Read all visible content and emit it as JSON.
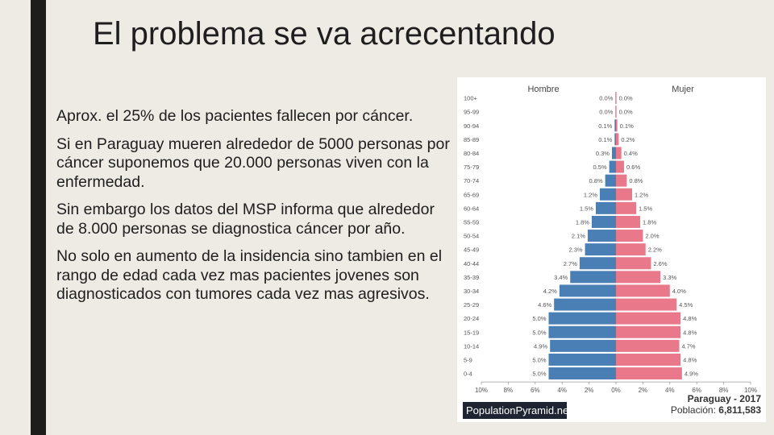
{
  "slide": {
    "title": "El problema se va acrecentando",
    "paragraphs": [
      "Aprox. el 25% de los pacientes fallecen por cáncer.",
      "Si en Paraguay mueren alrededor de 5000 personas por cáncer suponemos que 20.000 personas viven con la enfermedad.",
      "Sin embargo los datos del MSP informa que alrededor de 8.000 personas se diagnostica cáncer por año.",
      "No solo en aumento de la insidencia sino tambien en el rango de edad cada vez mas pacientes jovenes son diagnosticados con tumores cada vez mas agresivos."
    ]
  },
  "chart_data": {
    "type": "bar",
    "orientation": "horizontal",
    "series": [
      {
        "name": "Hombre",
        "values": [
          0.0,
          0.0,
          0.1,
          0.1,
          0.3,
          0.5,
          0.8,
          1.2,
          1.5,
          1.8,
          2.1,
          2.3,
          2.7,
          3.4,
          4.2,
          4.6,
          5.0,
          5.0,
          4.9,
          5.0,
          5.0
        ],
        "value_labels": [
          "0.0%",
          "0.0%",
          "0.1%",
          "0.1%",
          "0.3%",
          "0.5%",
          "0.8%",
          "1.2%",
          "1.5%",
          "1.8%",
          "2.1%",
          "2.3%",
          "2.7%",
          "3.4%",
          "4.2%",
          "4.6%",
          "5.0%",
          "5.0%",
          "4.9%",
          "5.0%",
          "5.0%"
        ]
      },
      {
        "name": "Mujer",
        "values": [
          0.0,
          0.0,
          0.1,
          0.2,
          0.4,
          0.6,
          0.8,
          1.2,
          1.5,
          1.8,
          2.0,
          2.2,
          2.6,
          3.3,
          4.0,
          4.5,
          4.8,
          4.8,
          4.7,
          4.8,
          4.9
        ],
        "value_labels": [
          "0.0%",
          "0.0%",
          "0.1%",
          "0.2%",
          "0.4%",
          "0.6%",
          "0.8%",
          "1.2%",
          "1.5%",
          "1.8%",
          "2.0%",
          "2.2%",
          "2.6%",
          "3.3%",
          "4.0%",
          "4.5%",
          "4.8%",
          "4.8%",
          "4.7%",
          "4.8%",
          "4.9%"
        ]
      }
    ],
    "categories": [
      "100+",
      "95-99",
      "90-94",
      "85-89",
      "80-84",
      "75-79",
      "70-74",
      "65-69",
      "60-64",
      "55-59",
      "50-54",
      "45-49",
      "40-44",
      "35-39",
      "30-34",
      "25-29",
      "20-24",
      "15-19",
      "10-14",
      "5-9",
      "0-4"
    ],
    "xlim": [
      -10,
      10
    ],
    "x_ticks": [
      "10%",
      "8%",
      "6%",
      "4%",
      "2%",
      "0%",
      "2%",
      "4%",
      "6%",
      "8%",
      "10%"
    ],
    "colors": {
      "Hombre": "#4a7fb5",
      "Mujer": "#e8788a"
    },
    "source_label": "PopulationPyramid.net",
    "country_label": "Paraguay - 2017",
    "population_label": "Población:",
    "population_value": "6,811,583"
  }
}
